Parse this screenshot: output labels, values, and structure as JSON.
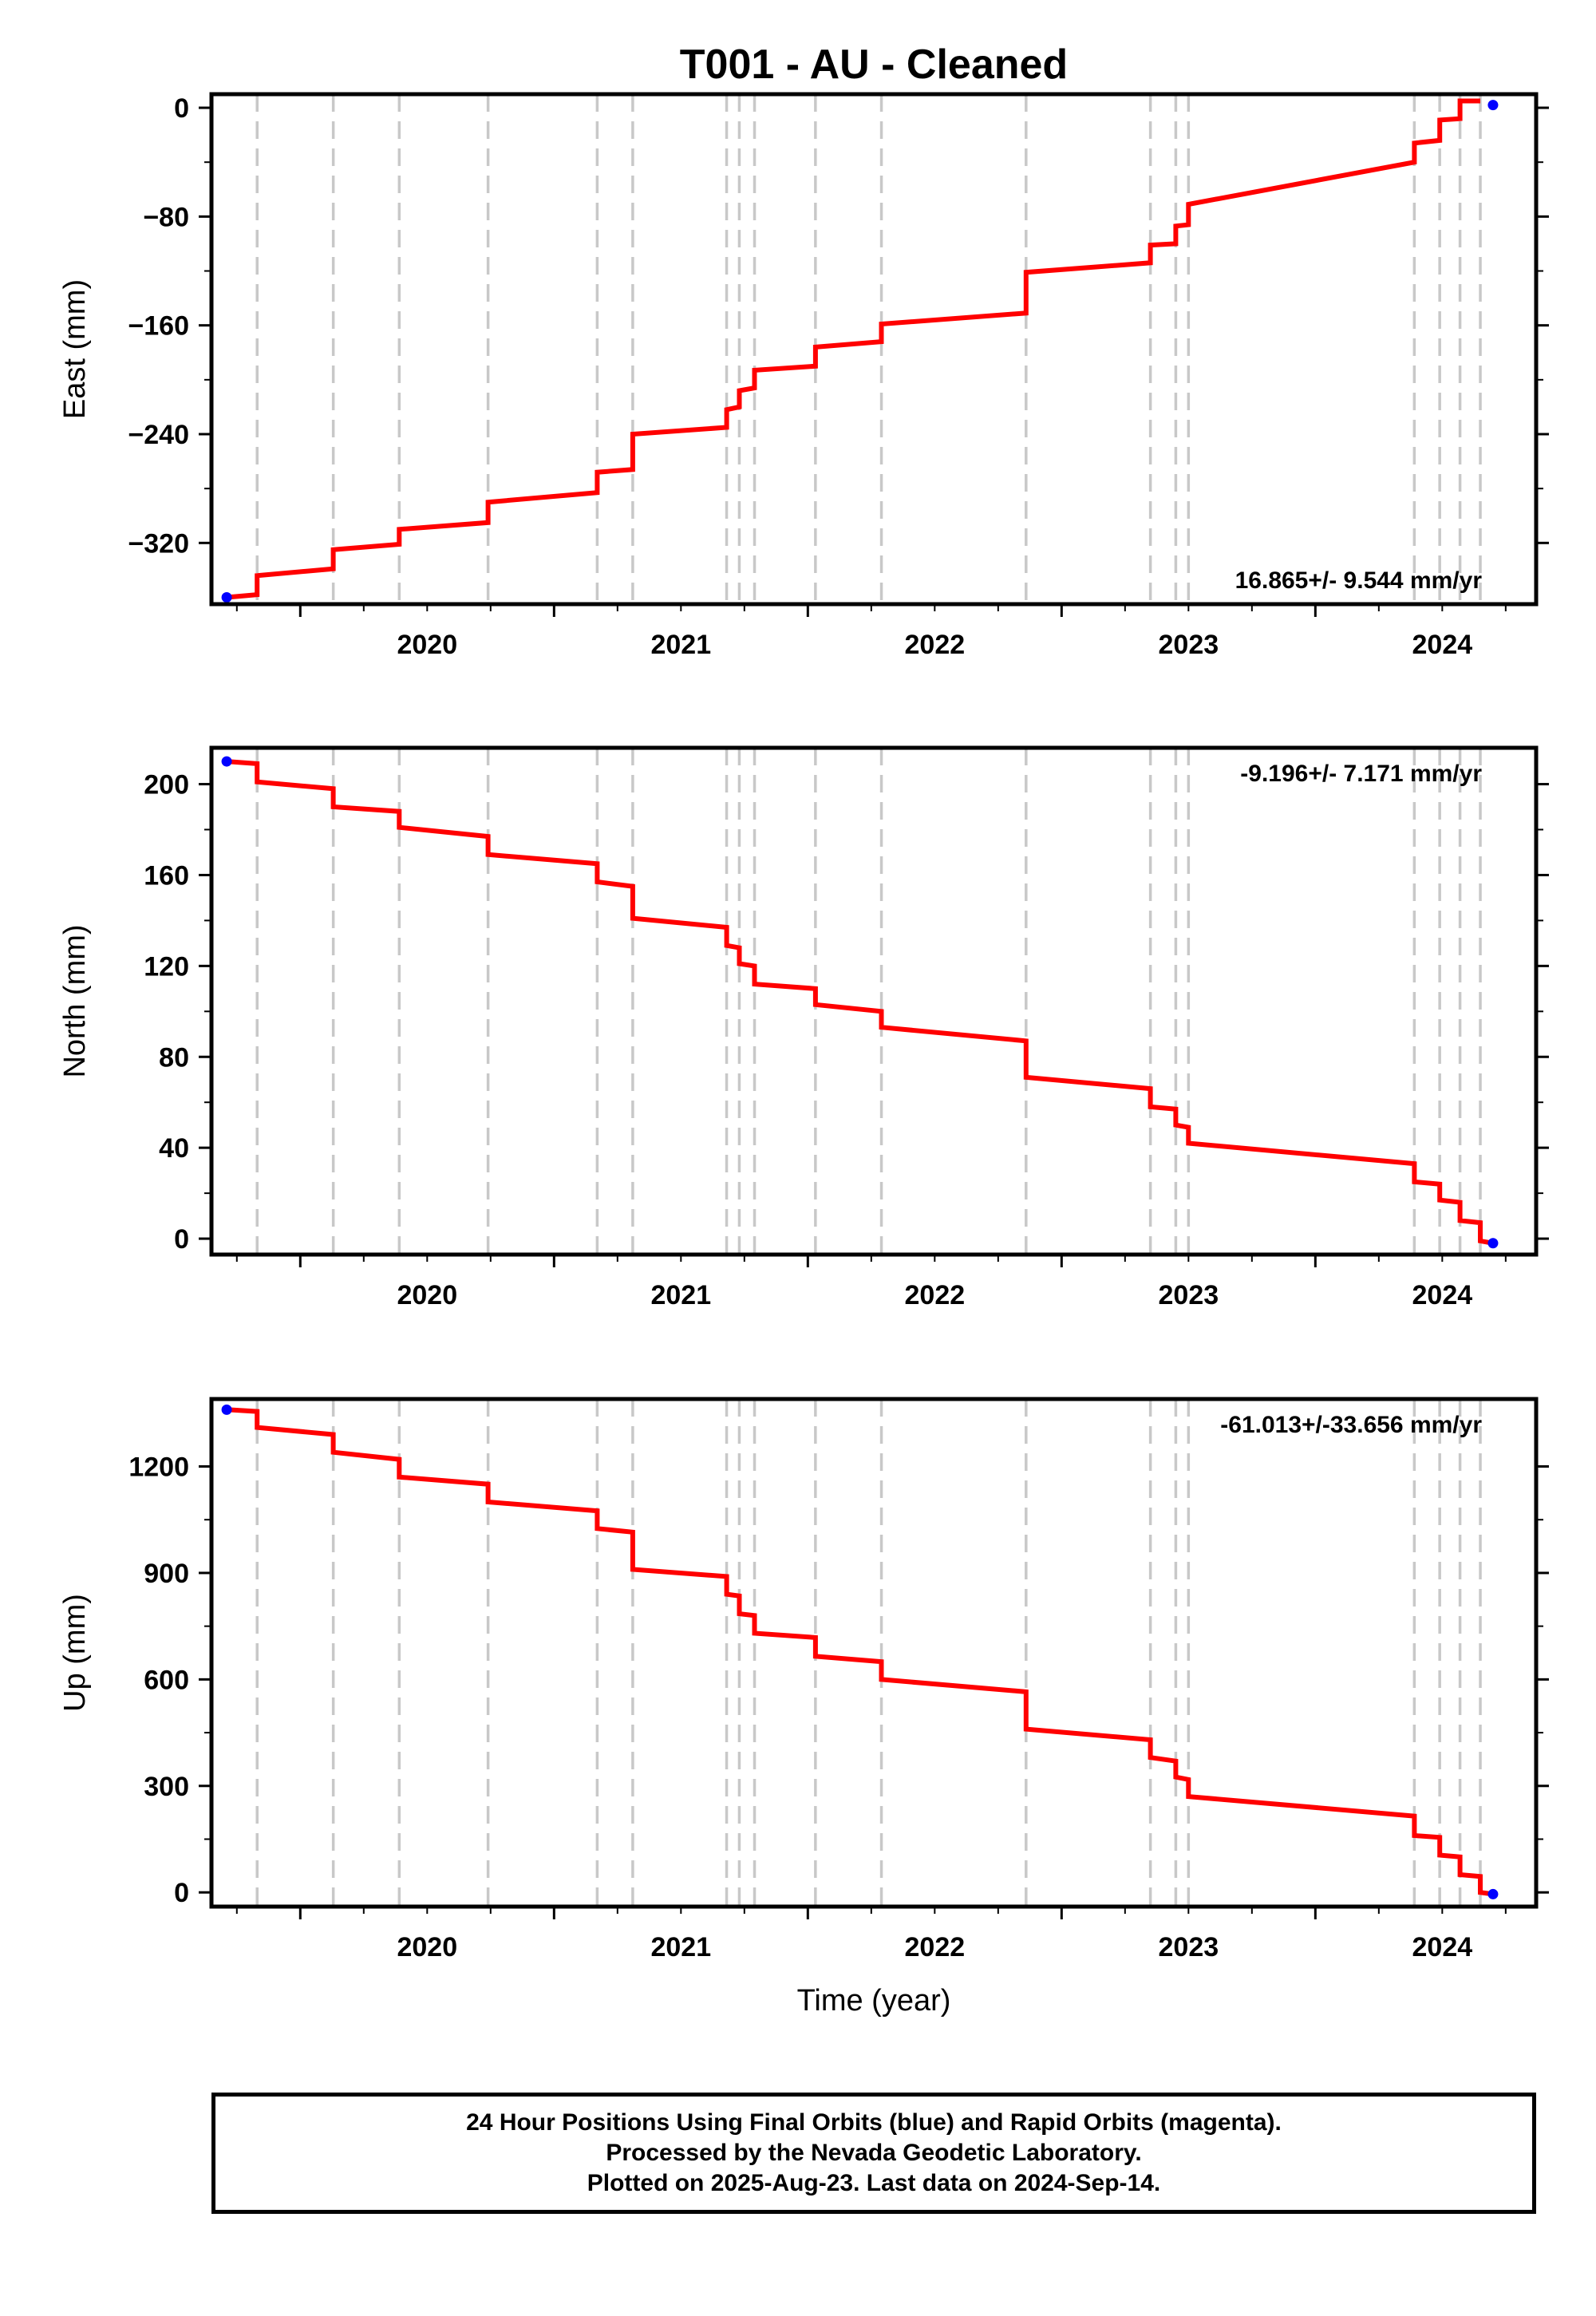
{
  "title": "T001  - AU - Cleaned",
  "colors": {
    "model_line": "#ff0000",
    "final_orbits": "#0000ff",
    "event_lines": "#c8c8c8",
    "frame": "#000000"
  },
  "chart_data": [
    {
      "type": "line",
      "ylabel": "East (mm)",
      "xlabel": "",
      "xlim": [
        2019.65,
        2024.87
      ],
      "ylim": [
        -365,
        10
      ],
      "xticks": [
        "2020",
        "2021",
        "2022",
        "2023",
        "2024"
      ],
      "yticks": [
        "0",
        "-80",
        "-160",
        "-240",
        "-320"
      ],
      "ytick_values": [
        0,
        -80,
        -160,
        -240,
        -320
      ],
      "rate": "16.865+/- 9.544 mm/yr",
      "rate_position": "bottom-right",
      "grid": false,
      "event_times": [
        2019.83,
        2020.13,
        2020.39,
        2020.74,
        2021.17,
        2021.31,
        2021.68,
        2021.73,
        2021.79,
        2022.03,
        2022.29,
        2022.86,
        2023.35,
        2023.45,
        2023.5,
        2024.39,
        2024.49,
        2024.57,
        2024.65
      ],
      "series": [
        {
          "x": [
            2019.71,
            2019.83,
            2019.83,
            2020.13,
            2020.13,
            2020.39,
            2020.39,
            2020.74,
            2020.74,
            2021.17,
            2021.17,
            2021.31,
            2021.31,
            2021.68,
            2021.68,
            2021.73,
            2021.73,
            2021.79,
            2021.79,
            2022.03,
            2022.03,
            2022.29,
            2022.29,
            2022.86,
            2022.86,
            2023.35,
            2023.35,
            2023.45,
            2023.45,
            2023.5,
            2023.5,
            2024.39,
            2024.39,
            2024.49,
            2024.49,
            2024.57,
            2024.57,
            2024.65
          ],
          "values": [
            -360,
            -358,
            -344,
            -339,
            -325,
            -321,
            -310,
            -305,
            -290,
            -283,
            -268,
            -266,
            -240,
            -235,
            -222,
            -220,
            -208,
            -206,
            -193,
            -190,
            -176,
            -172,
            -159,
            -151,
            -121,
            -114,
            -101,
            -100,
            -87,
            -86,
            -71,
            -40,
            -26,
            -24,
            -9,
            -8,
            5,
            5
          ]
        }
      ],
      "points": {
        "x": [
          2019.71,
          2024.7
        ],
        "values": [
          -360,
          2
        ]
      }
    },
    {
      "type": "line",
      "ylabel": "North (mm)",
      "xlabel": "",
      "xlim": [
        2019.65,
        2024.87
      ],
      "ylim": [
        -7,
        216
      ],
      "xticks": [
        "2020",
        "2021",
        "2022",
        "2023",
        "2024"
      ],
      "yticks": [
        "200",
        "160",
        "120",
        "80",
        "40",
        "0"
      ],
      "ytick_values": [
        200,
        160,
        120,
        80,
        40,
        0
      ],
      "rate": "-9.196+/- 7.171 mm/yr",
      "rate_position": "top-right",
      "grid": false,
      "event_times": [
        2019.83,
        2020.13,
        2020.39,
        2020.74,
        2021.17,
        2021.31,
        2021.68,
        2021.73,
        2021.79,
        2022.03,
        2022.29,
        2022.86,
        2023.35,
        2023.45,
        2023.5,
        2024.39,
        2024.49,
        2024.57,
        2024.65
      ],
      "series": [
        {
          "x": [
            2019.71,
            2019.83,
            2019.83,
            2020.13,
            2020.13,
            2020.39,
            2020.39,
            2020.74,
            2020.74,
            2021.17,
            2021.17,
            2021.31,
            2021.31,
            2021.68,
            2021.68,
            2021.73,
            2021.73,
            2021.79,
            2021.79,
            2022.03,
            2022.03,
            2022.29,
            2022.29,
            2022.86,
            2022.86,
            2023.35,
            2023.35,
            2023.45,
            2023.45,
            2023.5,
            2023.5,
            2024.39,
            2024.39,
            2024.49,
            2024.49,
            2024.57,
            2024.57,
            2024.65,
            2024.65,
            2024.7
          ],
          "values": [
            210,
            209,
            201,
            198,
            190,
            188,
            181,
            177,
            169,
            165,
            157,
            155,
            141,
            137,
            129,
            128,
            121,
            120,
            112,
            110,
            103,
            100,
            93,
            87,
            71,
            66,
            58,
            57,
            50,
            49,
            42,
            33,
            25,
            24,
            17,
            16,
            8,
            7,
            -1,
            -2
          ]
        }
      ],
      "points": {
        "x": [
          2019.71,
          2024.7
        ],
        "values": [
          210,
          -2
        ]
      }
    },
    {
      "type": "line",
      "ylabel": "Up (mm)",
      "xlabel": "Time (year)",
      "xlim": [
        2019.65,
        2024.87
      ],
      "ylim": [
        -40,
        1390
      ],
      "xticks": [
        "2020",
        "2021",
        "2022",
        "2023",
        "2024"
      ],
      "yticks": [
        "1200",
        "900",
        "600",
        "300",
        "0"
      ],
      "ytick_values": [
        1200,
        900,
        600,
        300,
        0
      ],
      "rate": "-61.013+/-33.656 mm/yr",
      "rate_position": "top-right",
      "grid": false,
      "event_times": [
        2019.83,
        2020.13,
        2020.39,
        2020.74,
        2021.17,
        2021.31,
        2021.68,
        2021.73,
        2021.79,
        2022.03,
        2022.29,
        2022.86,
        2023.35,
        2023.45,
        2023.5,
        2024.39,
        2024.49,
        2024.57,
        2024.65
      ],
      "series": [
        {
          "x": [
            2019.71,
            2019.83,
            2019.83,
            2020.13,
            2020.13,
            2020.39,
            2020.39,
            2020.74,
            2020.74,
            2021.17,
            2021.17,
            2021.31,
            2021.31,
            2021.68,
            2021.68,
            2021.73,
            2021.73,
            2021.79,
            2021.79,
            2022.03,
            2022.03,
            2022.29,
            2022.29,
            2022.86,
            2022.86,
            2023.35,
            2023.35,
            2023.45,
            2023.45,
            2023.5,
            2023.5,
            2024.39,
            2024.39,
            2024.49,
            2024.49,
            2024.57,
            2024.57,
            2024.65,
            2024.65,
            2024.7
          ],
          "values": [
            1360,
            1355,
            1310,
            1290,
            1240,
            1220,
            1170,
            1150,
            1100,
            1075,
            1025,
            1015,
            910,
            890,
            840,
            835,
            785,
            780,
            730,
            718,
            665,
            650,
            600,
            565,
            460,
            430,
            380,
            370,
            325,
            318,
            270,
            215,
            160,
            155,
            105,
            100,
            50,
            45,
            0,
            -5
          ]
        }
      ],
      "points": {
        "x": [
          2019.71,
          2024.7
        ],
        "values": [
          1360,
          -5
        ]
      }
    }
  ],
  "footer": {
    "line1": "24 Hour Positions Using Final Orbits (blue) and Rapid Orbits (magenta).",
    "line2": "Processed by the Nevada Geodetic Laboratory.",
    "line3": "Plotted on 2025-Aug-23. Last data on 2024-Sep-14."
  }
}
